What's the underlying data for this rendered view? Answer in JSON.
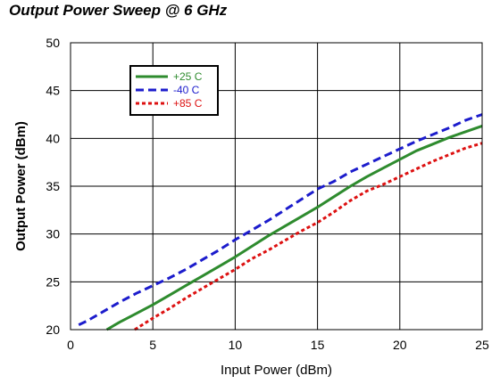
{
  "chart_data": {
    "type": "line",
    "title": "Output Power Sweep @ 6 GHz",
    "xlabel": "Input Power (dBm)",
    "ylabel": "Output Power (dBm)",
    "xlim": [
      0,
      25
    ],
    "ylim": [
      20,
      50
    ],
    "xticks": [
      0,
      5,
      10,
      15,
      20,
      25
    ],
    "yticks": [
      20,
      25,
      30,
      35,
      40,
      45,
      50
    ],
    "grid": true,
    "legend_position": "top-left",
    "series": [
      {
        "name": "+25 C",
        "color": "#2e8b2e",
        "dash": "solid",
        "points": [
          [
            2.2,
            20
          ],
          [
            3,
            20.8
          ],
          [
            4,
            21.7
          ],
          [
            5,
            22.6
          ],
          [
            6,
            23.6
          ],
          [
            7,
            24.6
          ],
          [
            8,
            25.6
          ],
          [
            9,
            26.6
          ],
          [
            10,
            27.6
          ],
          [
            11,
            28.7
          ],
          [
            12,
            29.8
          ],
          [
            13,
            30.8
          ],
          [
            14,
            31.8
          ],
          [
            15,
            32.8
          ],
          [
            16,
            33.9
          ],
          [
            17,
            35.0
          ],
          [
            18,
            36.0
          ],
          [
            19,
            36.9
          ],
          [
            20,
            37.8
          ],
          [
            21,
            38.7
          ],
          [
            22,
            39.4
          ],
          [
            23,
            40.1
          ],
          [
            24,
            40.7
          ],
          [
            25,
            41.3
          ]
        ]
      },
      {
        "name": "-40 C",
        "color": "#1c1ccc",
        "dash": "dashed",
        "points": [
          [
            0.5,
            20.5
          ],
          [
            1,
            20.9
          ],
          [
            2,
            21.9
          ],
          [
            3,
            22.9
          ],
          [
            4,
            23.8
          ],
          [
            5,
            24.6
          ],
          [
            6,
            25.4
          ],
          [
            7,
            26.3
          ],
          [
            8,
            27.3
          ],
          [
            9,
            28.3
          ],
          [
            10,
            29.4
          ],
          [
            11,
            30.4
          ],
          [
            12,
            31.4
          ],
          [
            13,
            32.5
          ],
          [
            14,
            33.6
          ],
          [
            15,
            34.7
          ],
          [
            16,
            35.5
          ],
          [
            17,
            36.5
          ],
          [
            18,
            37.3
          ],
          [
            19,
            38.1
          ],
          [
            20,
            38.9
          ],
          [
            21,
            39.7
          ],
          [
            22,
            40.4
          ],
          [
            23,
            41.1
          ],
          [
            24,
            41.9
          ],
          [
            25,
            42.5
          ]
        ]
      },
      {
        "name": "+85 C",
        "color": "#dd1111",
        "dash": "dotted",
        "points": [
          [
            3.9,
            20
          ],
          [
            5,
            21.2
          ],
          [
            6,
            22.2
          ],
          [
            7,
            23.3
          ],
          [
            8,
            24.3
          ],
          [
            9,
            25.3
          ],
          [
            10,
            26.3
          ],
          [
            11,
            27.4
          ],
          [
            12,
            28.3
          ],
          [
            13,
            29.3
          ],
          [
            14,
            30.3
          ],
          [
            15,
            31.2
          ],
          [
            16,
            32.3
          ],
          [
            17,
            33.5
          ],
          [
            18,
            34.5
          ],
          [
            19,
            35.2
          ],
          [
            20,
            36.0
          ],
          [
            21,
            36.8
          ],
          [
            22,
            37.6
          ],
          [
            23,
            38.3
          ],
          [
            24,
            39.0
          ],
          [
            25,
            39.5
          ]
        ]
      }
    ]
  }
}
